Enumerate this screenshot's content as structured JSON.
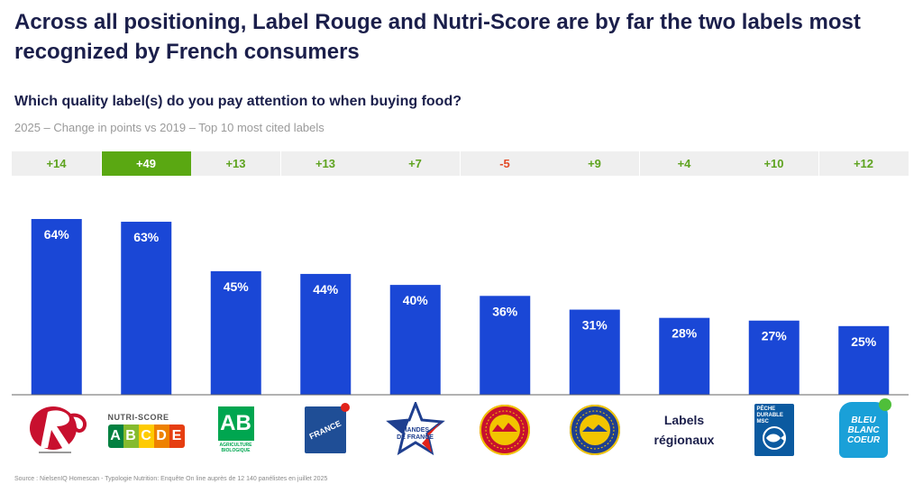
{
  "title": "Across all positioning, Label Rouge and Nutri-Score are by far the two labels most recognized by French consumers",
  "subtitle": "Which quality label(s) do you pay attention to when buying food?",
  "note": "2025 – Change in points vs 2019 – Top 10 most cited labels",
  "source": "Source : NielsenIQ Homescan - Typologie Nutrition: Enquête On line auprès de 12 140 panélistes en juillet 2025",
  "colors": {
    "bar": "#1a47d6",
    "positive": "#5ea31f",
    "negative": "#e24b27",
    "highlight": "#5aa812"
  },
  "logos": {
    "label_rouge": "Label Rouge logo",
    "nutri_score": {
      "name": "NUTRI-SCORE",
      "letters": [
        "A",
        "B",
        "C",
        "D",
        "E"
      ]
    },
    "ab": {
      "mark": "AB",
      "text": "AGRICULTURE BIOLOGIQUE"
    },
    "origine_france": {
      "text": "FRANCE"
    },
    "viandes_de_france": {
      "line1": "VIANDES",
      "line2": "DE FRANCE"
    },
    "aop": "AOP seal",
    "igp": "IGP seal",
    "labels_regionaux": {
      "line1": "Labels",
      "line2": "régionaux"
    },
    "msc": {
      "line1": "PÊCHE",
      "line2": "DURABLE",
      "line3": "MSC"
    },
    "bleu_blanc_coeur": {
      "line1": "BLEU",
      "line2": "BLANC",
      "line3": "COEUR"
    }
  },
  "chart_data": {
    "type": "bar",
    "categories": [
      "Label Rouge",
      "Nutri-Score",
      "AB Agriculture Biologique",
      "Origine France Garantie",
      "Viandes de France",
      "AOP",
      "IGP",
      "Labels régionaux",
      "Pêche durable MSC",
      "Bleu Blanc Coeur"
    ],
    "values": [
      64,
      63,
      45,
      44,
      40,
      36,
      31,
      28,
      27,
      25
    ],
    "value_labels": [
      "64%",
      "63%",
      "45%",
      "44%",
      "40%",
      "36%",
      "31%",
      "28%",
      "27%",
      "25%"
    ],
    "changes": [
      "+14",
      "+49",
      "+13",
      "+13",
      "+7",
      "-5",
      "+9",
      "+4",
      "+10",
      "+12"
    ],
    "highlight_index": 1,
    "unit": "%",
    "ylim": [
      0,
      70
    ],
    "grid": false
  }
}
